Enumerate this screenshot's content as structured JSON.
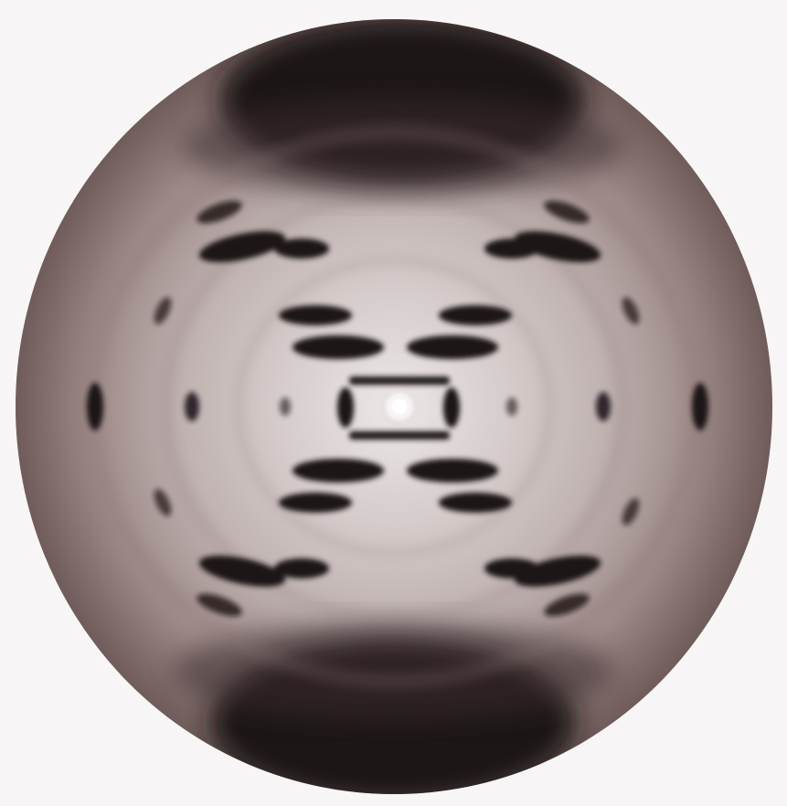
{
  "image": {
    "subject": "x-ray-diffraction-pattern",
    "palette": {
      "background": "#f7f5f5",
      "disc_outer": "#6e5a58",
      "disc_mid": "#a18f8d",
      "disc_inner": "#d2c8c7",
      "center": "#e8e2e2",
      "spot": "#1a1214",
      "beam": "#ffffff"
    }
  }
}
